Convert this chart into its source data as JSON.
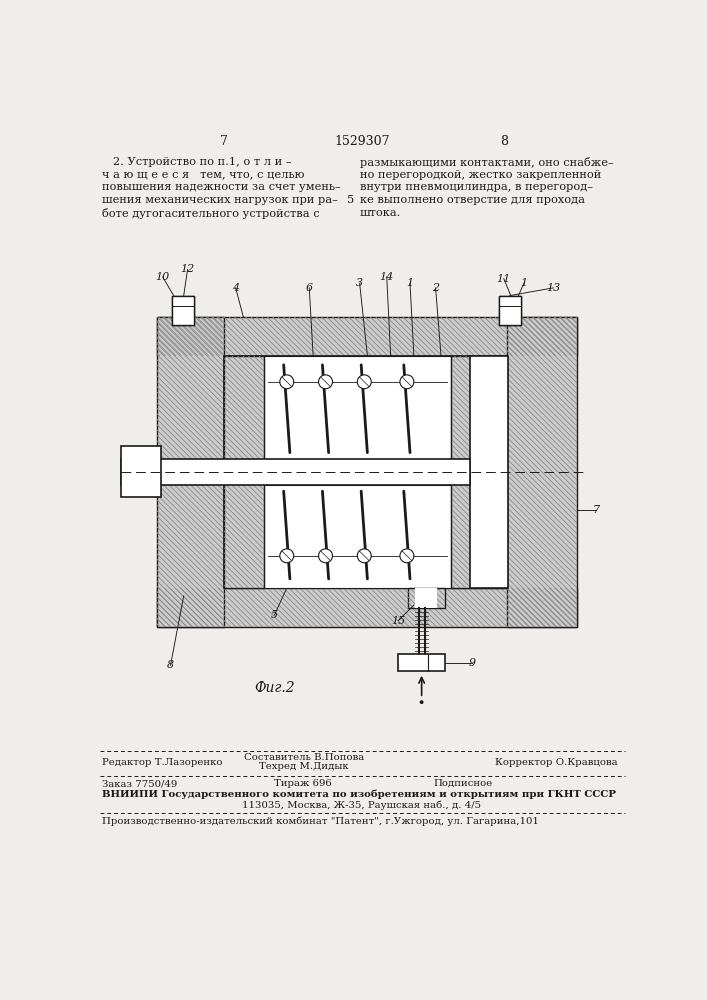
{
  "bg_color": "#f0eeea",
  "lc": "#1a1a1a",
  "hc": "#888888",
  "page_left": "7",
  "page_center": "1529307",
  "page_right": "8",
  "text_left": [
    "   2. Устройство по п.1, о т л и –",
    "ч а ю щ е е с я   тем, что, с целью",
    "повышения надежности за счет умень–",
    "шения механических нагрузок при ра–",
    "боте дугогасительного устройства с"
  ],
  "line5": "5",
  "text_right": [
    "размыкающими контактами, оно снабже–",
    "но перегородкой, жестко закрепленной",
    "внутри пневмоцилиндра, в перегород–",
    "ке выполнено отверстие для прохода",
    "штока."
  ],
  "fig_caption": "Фиг.2",
  "footer_editor": "Редактор Т.Лазоренко",
  "footer_techred_label": "Техред М.Дидык",
  "footer_author_label": "Составитель В.Попова",
  "footer_corrector": "Корректор О.Кравцова",
  "footer_order": "Заказ 7750/49",
  "footer_tirazh": "Тираж 696",
  "footer_podp": "Подписное",
  "footer_vniip": "ВНИИПИ Государственного комитета по изобретениям и открытиям при ГКНТ СССР",
  "footer_addr": "113035, Москва, Ж-35, Раушская наб., д. 4/5",
  "footer_patent": "Производственно-издательский комбинат \"Патент\", г.Ужгород, ул. Гагарина,101"
}
